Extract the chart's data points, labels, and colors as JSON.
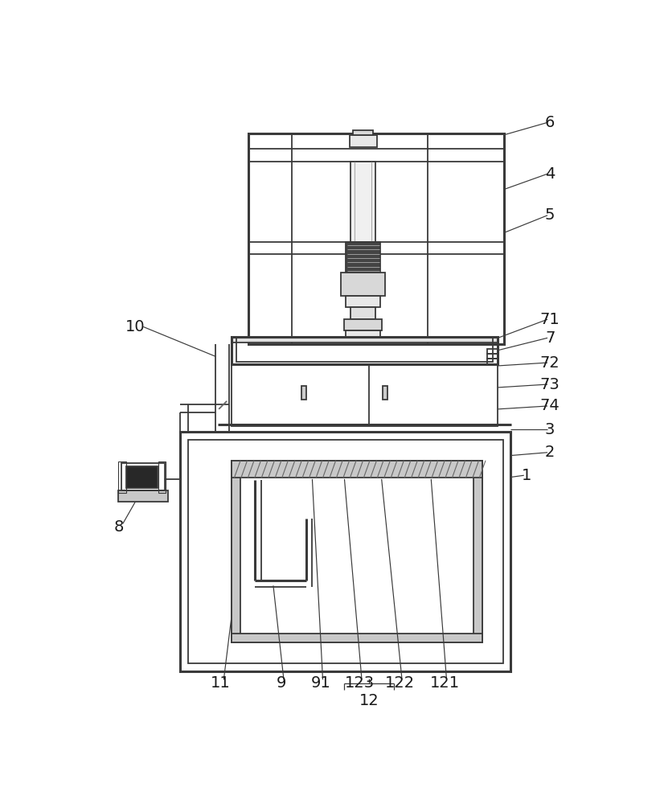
{
  "bg_color": "#ffffff",
  "line_color": "#3a3a3a",
  "lw": 1.3,
  "tlw": 2.2,
  "figsize": [
    8.21,
    10.0
  ],
  "dpi": 100,
  "label_fs": 14,
  "label_color": "#1a1a1a"
}
